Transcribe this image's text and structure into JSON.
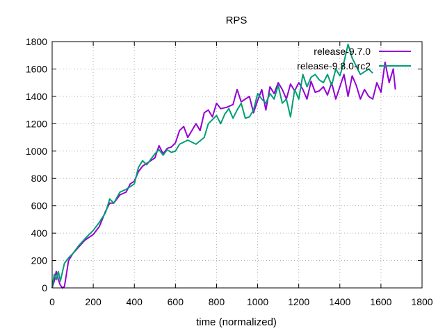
{
  "chart_data": {
    "type": "line",
    "title": "RPS",
    "xlabel": "time (normalized)",
    "ylabel": "",
    "xlim": [
      0,
      1800
    ],
    "ylim": [
      0,
      1800
    ],
    "xticks": [
      0,
      200,
      400,
      600,
      800,
      1000,
      1200,
      1400,
      1600,
      1800
    ],
    "yticks": [
      0,
      200,
      400,
      600,
      800,
      1000,
      1200,
      1400,
      1600,
      1800
    ],
    "grid": true,
    "legend_position": "top-right",
    "series": [
      {
        "name": "release-9.7.0",
        "color": "#9400d3",
        "x": [
          0,
          10,
          20,
          30,
          40,
          50,
          60,
          80,
          100,
          130,
          160,
          200,
          230,
          260,
          280,
          300,
          330,
          360,
          380,
          400,
          420,
          440,
          460,
          500,
          520,
          540,
          560,
          580,
          600,
          620,
          640,
          660,
          700,
          720,
          740,
          760,
          780,
          800,
          820,
          850,
          880,
          900,
          920,
          940,
          960,
          980,
          1000,
          1020,
          1040,
          1060,
          1080,
          1100,
          1120,
          1140,
          1160,
          1180,
          1200,
          1220,
          1240,
          1260,
          1280,
          1300,
          1320,
          1340,
          1360,
          1380,
          1400,
          1420,
          1440,
          1460,
          1480,
          1500,
          1520,
          1540,
          1560,
          1580,
          1600,
          1620,
          1640,
          1660,
          1670
        ],
        "y": [
          0,
          50,
          120,
          60,
          20,
          0,
          10,
          200,
          250,
          300,
          350,
          390,
          450,
          560,
          620,
          620,
          680,
          700,
          760,
          780,
          850,
          890,
          910,
          950,
          1040,
          980,
          1020,
          1030,
          1060,
          1150,
          1180,
          1100,
          1200,
          1150,
          1280,
          1300,
          1250,
          1350,
          1310,
          1320,
          1340,
          1450,
          1360,
          1380,
          1400,
          1280,
          1370,
          1450,
          1300,
          1470,
          1420,
          1500,
          1450,
          1380,
          1490,
          1440,
          1500,
          1450,
          1380,
          1510,
          1430,
          1440,
          1470,
          1410,
          1500,
          1380,
          1470,
          1560,
          1400,
          1550,
          1480,
          1380,
          1450,
          1400,
          1380,
          1500,
          1430,
          1650,
          1500,
          1600,
          1450
        ]
      },
      {
        "name": "release-9.8.0-rc2",
        "color": "#009e73",
        "x": [
          0,
          10,
          20,
          30,
          40,
          60,
          80,
          100,
          130,
          160,
          200,
          230,
          260,
          280,
          300,
          330,
          360,
          400,
          420,
          440,
          460,
          500,
          520,
          540,
          560,
          580,
          600,
          620,
          660,
          700,
          740,
          760,
          800,
          820,
          840,
          860,
          880,
          900,
          920,
          940,
          960,
          980,
          1000,
          1020,
          1040,
          1060,
          1080,
          1100,
          1120,
          1140,
          1160,
          1180,
          1200,
          1220,
          1240,
          1260,
          1280,
          1300,
          1320,
          1340,
          1360,
          1380,
          1400,
          1420,
          1440,
          1460,
          1480,
          1500,
          1520,
          1540,
          1560
        ],
        "y": [
          0,
          100,
          60,
          120,
          50,
          180,
          220,
          250,
          310,
          360,
          420,
          480,
          550,
          650,
          620,
          700,
          720,
          760,
          880,
          930,
          900,
          980,
          1010,
          970,
          1010,
          990,
          1000,
          1050,
          1080,
          1050,
          1100,
          1200,
          1260,
          1200,
          1270,
          1310,
          1240,
          1300,
          1350,
          1240,
          1250,
          1300,
          1420,
          1380,
          1350,
          1420,
          1380,
          1480,
          1350,
          1380,
          1250,
          1450,
          1380,
          1560,
          1470,
          1540,
          1560,
          1520,
          1500,
          1560,
          1480,
          1600,
          1550,
          1650,
          1780,
          1680,
          1620,
          1560,
          1580,
          1600,
          1570
        ]
      }
    ]
  }
}
